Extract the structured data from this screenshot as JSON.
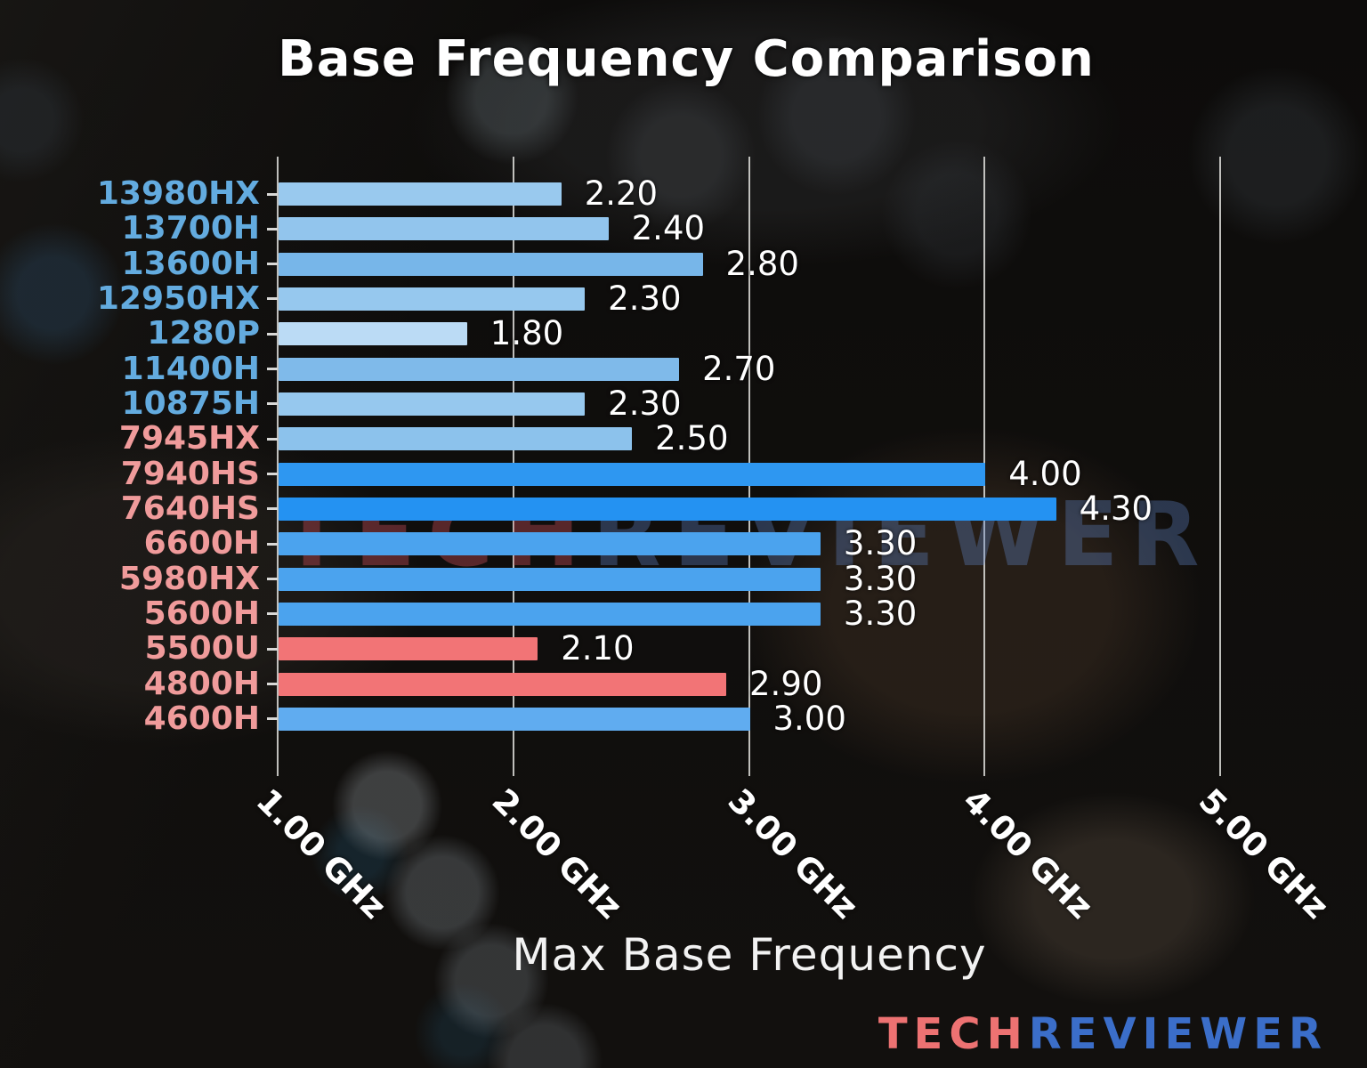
{
  "page_title": "Base Frequency Comparison",
  "chart_data": {
    "type": "bar",
    "orientation": "horizontal",
    "title": "Base Frequency Comparison",
    "xlabel": "Max Base Frequency",
    "value_unit": "GHz",
    "xlim": [
      1.0,
      5.4
    ],
    "grid": "vertical",
    "legend": "none",
    "xticks": [
      {
        "value": 1.0,
        "label": "1.00 GHz"
      },
      {
        "value": 2.0,
        "label": "2.00 GHz"
      },
      {
        "value": 3.0,
        "label": "3.00 GHz"
      },
      {
        "value": 4.0,
        "label": "4.00 GHz"
      },
      {
        "value": 5.0,
        "label": "5.00 GHz"
      }
    ],
    "bars": [
      {
        "label": "13980HX",
        "value": 2.2,
        "value_text": "2.20",
        "label_color": "#63ABDF",
        "bar_color": "#99C9EE"
      },
      {
        "label": "13700H",
        "value": 2.4,
        "value_text": "2.40",
        "label_color": "#63ABDF",
        "bar_color": "#92C5ED"
      },
      {
        "label": "13600H",
        "value": 2.8,
        "value_text": "2.80",
        "label_color": "#63ABDF",
        "bar_color": "#77B6E9"
      },
      {
        "label": "12950HX",
        "value": 2.3,
        "value_text": "2.30",
        "label_color": "#63ABDF",
        "bar_color": "#96C8EE"
      },
      {
        "label": "1280P",
        "value": 1.8,
        "value_text": "1.80",
        "label_color": "#63ABDF",
        "bar_color": "#BBDBF5"
      },
      {
        "label": "11400H",
        "value": 2.7,
        "value_text": "2.70",
        "label_color": "#63ABDF",
        "bar_color": "#7FBAEA"
      },
      {
        "label": "10875H",
        "value": 2.3,
        "value_text": "2.30",
        "label_color": "#63ABDF",
        "bar_color": "#96C8EE"
      },
      {
        "label": "7945HX",
        "value": 2.5,
        "value_text": "2.50",
        "label_color": "#F09B9B",
        "bar_color": "#8CC2EC"
      },
      {
        "label": "7940HS",
        "value": 4.0,
        "value_text": "4.00",
        "label_color": "#F09B9B",
        "bar_color": "#2E97F1"
      },
      {
        "label": "7640HS",
        "value": 4.3,
        "value_text": "4.30",
        "label_color": "#F09B9B",
        "bar_color": "#2492F2"
      },
      {
        "label": "6600H",
        "value": 3.3,
        "value_text": "3.30",
        "label_color": "#F09B9B",
        "bar_color": "#4BA3EE"
      },
      {
        "label": "5980HX",
        "value": 3.3,
        "value_text": "3.30",
        "label_color": "#F09B9B",
        "bar_color": "#4BA3EE"
      },
      {
        "label": "5600H",
        "value": 3.3,
        "value_text": "3.30",
        "label_color": "#F09B9B",
        "bar_color": "#4BA3EE"
      },
      {
        "label": "5500U",
        "value": 2.1,
        "value_text": "2.10",
        "label_color": "#F09B9B",
        "bar_color": "#F27476"
      },
      {
        "label": "4800H",
        "value": 2.9,
        "value_text": "2.90",
        "label_color": "#F09B9B",
        "bar_color": "#F27476"
      },
      {
        "label": "4600H",
        "value": 3.0,
        "value_text": "3.00",
        "label_color": "#F09B9B",
        "bar_color": "#60ACF0"
      }
    ],
    "colors": {
      "intel_label": "#63ABDF",
      "amd_label": "#F09B9B",
      "value_label": "#FFFFFF",
      "gridline": "#DEDEDB"
    }
  },
  "watermark": {
    "part1": "TECH",
    "part2": "REVIEWER",
    "part1_color": "rgba(190,75,85,0.42)",
    "part2_color": "rgba(95,130,195,0.36)"
  },
  "logo": {
    "part1": "TECH",
    "part2": "REVIEWER",
    "part1_color": "#ED7272",
    "part2_color": "#3B6EC9"
  }
}
